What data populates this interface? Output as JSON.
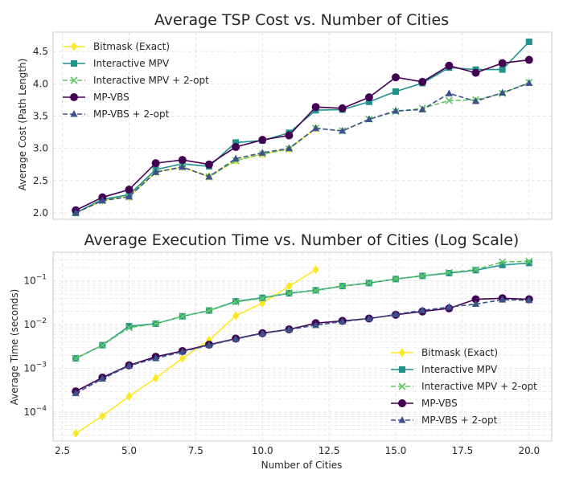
{
  "colors": {
    "bitmask": "#fde725",
    "interactive_mpv": "#21918c",
    "interactive_mpv_2opt": "#5ec962",
    "mp_vbs": "#440154",
    "mp_vbs_2opt": "#3b528b",
    "grid": "#dddddd",
    "frame": "#cccccc"
  },
  "chart_data": [
    {
      "type": "line",
      "title": "Average TSP Cost vs. Number of Cities",
      "xlabel": "",
      "ylabel": "Average Cost (Path Length)",
      "xlim": [
        2.15,
        20.85
      ],
      "ylim": [
        1.9,
        4.8
      ],
      "xticks": [
        "2.5",
        "5.0",
        "7.5",
        "10.0",
        "12.5",
        "15.0",
        "17.5",
        "20.0"
      ],
      "xtick_values": [
        2.5,
        5,
        7.5,
        10,
        12.5,
        15,
        17.5,
        20
      ],
      "show_xtick_labels": false,
      "yticks": [
        "2.0",
        "2.5",
        "3.0",
        "3.5",
        "4.0",
        "4.5"
      ],
      "ytick_values": [
        2.0,
        2.5,
        3.0,
        3.5,
        4.0,
        4.5
      ],
      "grid": true,
      "legend": "top-left",
      "series": [
        {
          "name": "Bitmask (Exact)",
          "key": "bitmask",
          "marker": "diamond",
          "dash": false,
          "x": [
            3,
            4,
            5,
            6,
            7,
            8,
            9,
            10,
            11,
            12
          ],
          "y": [
            2.0,
            2.19,
            2.25,
            2.63,
            2.71,
            2.56,
            2.81,
            2.91,
            2.99,
            3.31
          ]
        },
        {
          "name": "Interactive MPV",
          "key": "interactive_mpv",
          "marker": "square",
          "dash": false,
          "x": [
            3,
            4,
            5,
            6,
            7,
            8,
            9,
            10,
            11,
            12,
            13,
            14,
            15,
            16,
            17,
            18,
            19,
            20
          ],
          "y": [
            2.0,
            2.21,
            2.28,
            2.67,
            2.76,
            2.72,
            3.09,
            3.12,
            3.24,
            3.59,
            3.6,
            3.72,
            3.88,
            4.01,
            4.25,
            4.22,
            4.22,
            4.65
          ]
        },
        {
          "name": "Interactive MPV + 2-opt",
          "key": "interactive_mpv_2opt",
          "marker": "x",
          "dash": true,
          "x": [
            3,
            4,
            5,
            6,
            7,
            8,
            9,
            10,
            11,
            12,
            13,
            14,
            15,
            16,
            17,
            18,
            19,
            20
          ],
          "y": [
            2.0,
            2.19,
            2.25,
            2.63,
            2.71,
            2.56,
            2.81,
            2.91,
            2.99,
            3.31,
            3.27,
            3.45,
            3.57,
            3.62,
            3.74,
            3.75,
            3.85,
            4.02
          ]
        },
        {
          "name": "MP-VBS",
          "key": "mp_vbs",
          "marker": "circle",
          "dash": false,
          "x": [
            3,
            4,
            5,
            6,
            7,
            8,
            9,
            10,
            11,
            12,
            13,
            14,
            15,
            16,
            17,
            18,
            19,
            20
          ],
          "y": [
            2.04,
            2.24,
            2.36,
            2.77,
            2.82,
            2.75,
            3.02,
            3.13,
            3.2,
            3.64,
            3.62,
            3.79,
            4.1,
            4.03,
            4.28,
            4.17,
            4.32,
            4.37
          ]
        },
        {
          "name": "MP-VBS + 2-opt",
          "key": "mp_vbs_2opt",
          "marker": "triangle",
          "dash": true,
          "x": [
            3,
            4,
            5,
            6,
            7,
            8,
            9,
            10,
            11,
            12,
            13,
            14,
            15,
            16,
            17,
            18,
            19,
            20
          ],
          "y": [
            2.0,
            2.19,
            2.25,
            2.63,
            2.71,
            2.56,
            2.84,
            2.93,
            3.0,
            3.31,
            3.27,
            3.45,
            3.58,
            3.6,
            3.85,
            3.73,
            3.86,
            4.01
          ]
        }
      ]
    },
    {
      "type": "line",
      "title": "Average Execution Time vs. Number of Cities (Log Scale)",
      "xlabel": "Number of Cities",
      "ylabel": "Average Time (seconds)",
      "xlim": [
        2.15,
        20.85
      ],
      "ylim": [
        2.2e-05,
        0.45
      ],
      "yscale": "log",
      "xticks": [
        "2.5",
        "5.0",
        "7.5",
        "10.0",
        "12.5",
        "15.0",
        "17.5",
        "20.0"
      ],
      "xtick_values": [
        2.5,
        5,
        7.5,
        10,
        12.5,
        15,
        17.5,
        20
      ],
      "show_xtick_labels": true,
      "yticks_log": [
        -4,
        -3,
        -2,
        -1
      ],
      "grid": true,
      "legend": "bottom-right",
      "series": [
        {
          "name": "Bitmask (Exact)",
          "key": "bitmask",
          "marker": "diamond",
          "dash": false,
          "x": [
            3,
            4,
            5,
            6,
            7,
            8,
            9,
            10,
            11,
            12
          ],
          "y": [
            3.3e-05,
            8.2e-05,
            0.00023,
            0.0006,
            0.0017,
            0.0044,
            0.016,
            0.031,
            0.075,
            0.18
          ]
        },
        {
          "name": "Interactive MPV",
          "key": "interactive_mpv",
          "marker": "square",
          "dash": false,
          "x": [
            3,
            4,
            5,
            6,
            7,
            8,
            9,
            10,
            11,
            12,
            13,
            14,
            15,
            16,
            17,
            18,
            19,
            20
          ],
          "y": [
            0.0017,
            0.0034,
            0.0092,
            0.0105,
            0.0155,
            0.021,
            0.034,
            0.041,
            0.052,
            0.061,
            0.076,
            0.089,
            0.11,
            0.13,
            0.15,
            0.175,
            0.23,
            0.255
          ]
        },
        {
          "name": "Interactive MPV + 2-opt",
          "key": "interactive_mpv_2opt",
          "marker": "x",
          "dash": true,
          "x": [
            3,
            4,
            5,
            6,
            7,
            8,
            9,
            10,
            11,
            12,
            13,
            14,
            15,
            16,
            17,
            18,
            19,
            20
          ],
          "y": [
            0.0017,
            0.0034,
            0.0085,
            0.0105,
            0.0155,
            0.021,
            0.033,
            0.04,
            0.053,
            0.06,
            0.076,
            0.09,
            0.11,
            0.13,
            0.155,
            0.18,
            0.27,
            0.28
          ]
        },
        {
          "name": "MP-VBS",
          "key": "mp_vbs",
          "marker": "circle",
          "dash": false,
          "x": [
            3,
            4,
            5,
            6,
            7,
            8,
            9,
            10,
            11,
            12,
            13,
            14,
            15,
            16,
            17,
            18,
            19,
            20
          ],
          "y": [
            0.0003,
            0.00062,
            0.00118,
            0.00185,
            0.0025,
            0.0035,
            0.0048,
            0.0064,
            0.0078,
            0.0108,
            0.0122,
            0.0138,
            0.0168,
            0.02,
            0.0235,
            0.038,
            0.04,
            0.038
          ]
        },
        {
          "name": "MP-VBS + 2-opt",
          "key": "mp_vbs_2opt",
          "marker": "triangle",
          "dash": true,
          "x": [
            3,
            4,
            5,
            6,
            7,
            8,
            9,
            10,
            11,
            12,
            13,
            14,
            15,
            16,
            17,
            18,
            19,
            20
          ],
          "y": [
            0.00027,
            0.00058,
            0.00115,
            0.0017,
            0.0024,
            0.0034,
            0.0047,
            0.0063,
            0.0077,
            0.0097,
            0.0118,
            0.0137,
            0.0172,
            0.0212,
            0.0252,
            0.0295,
            0.037,
            0.036
          ]
        }
      ]
    }
  ]
}
